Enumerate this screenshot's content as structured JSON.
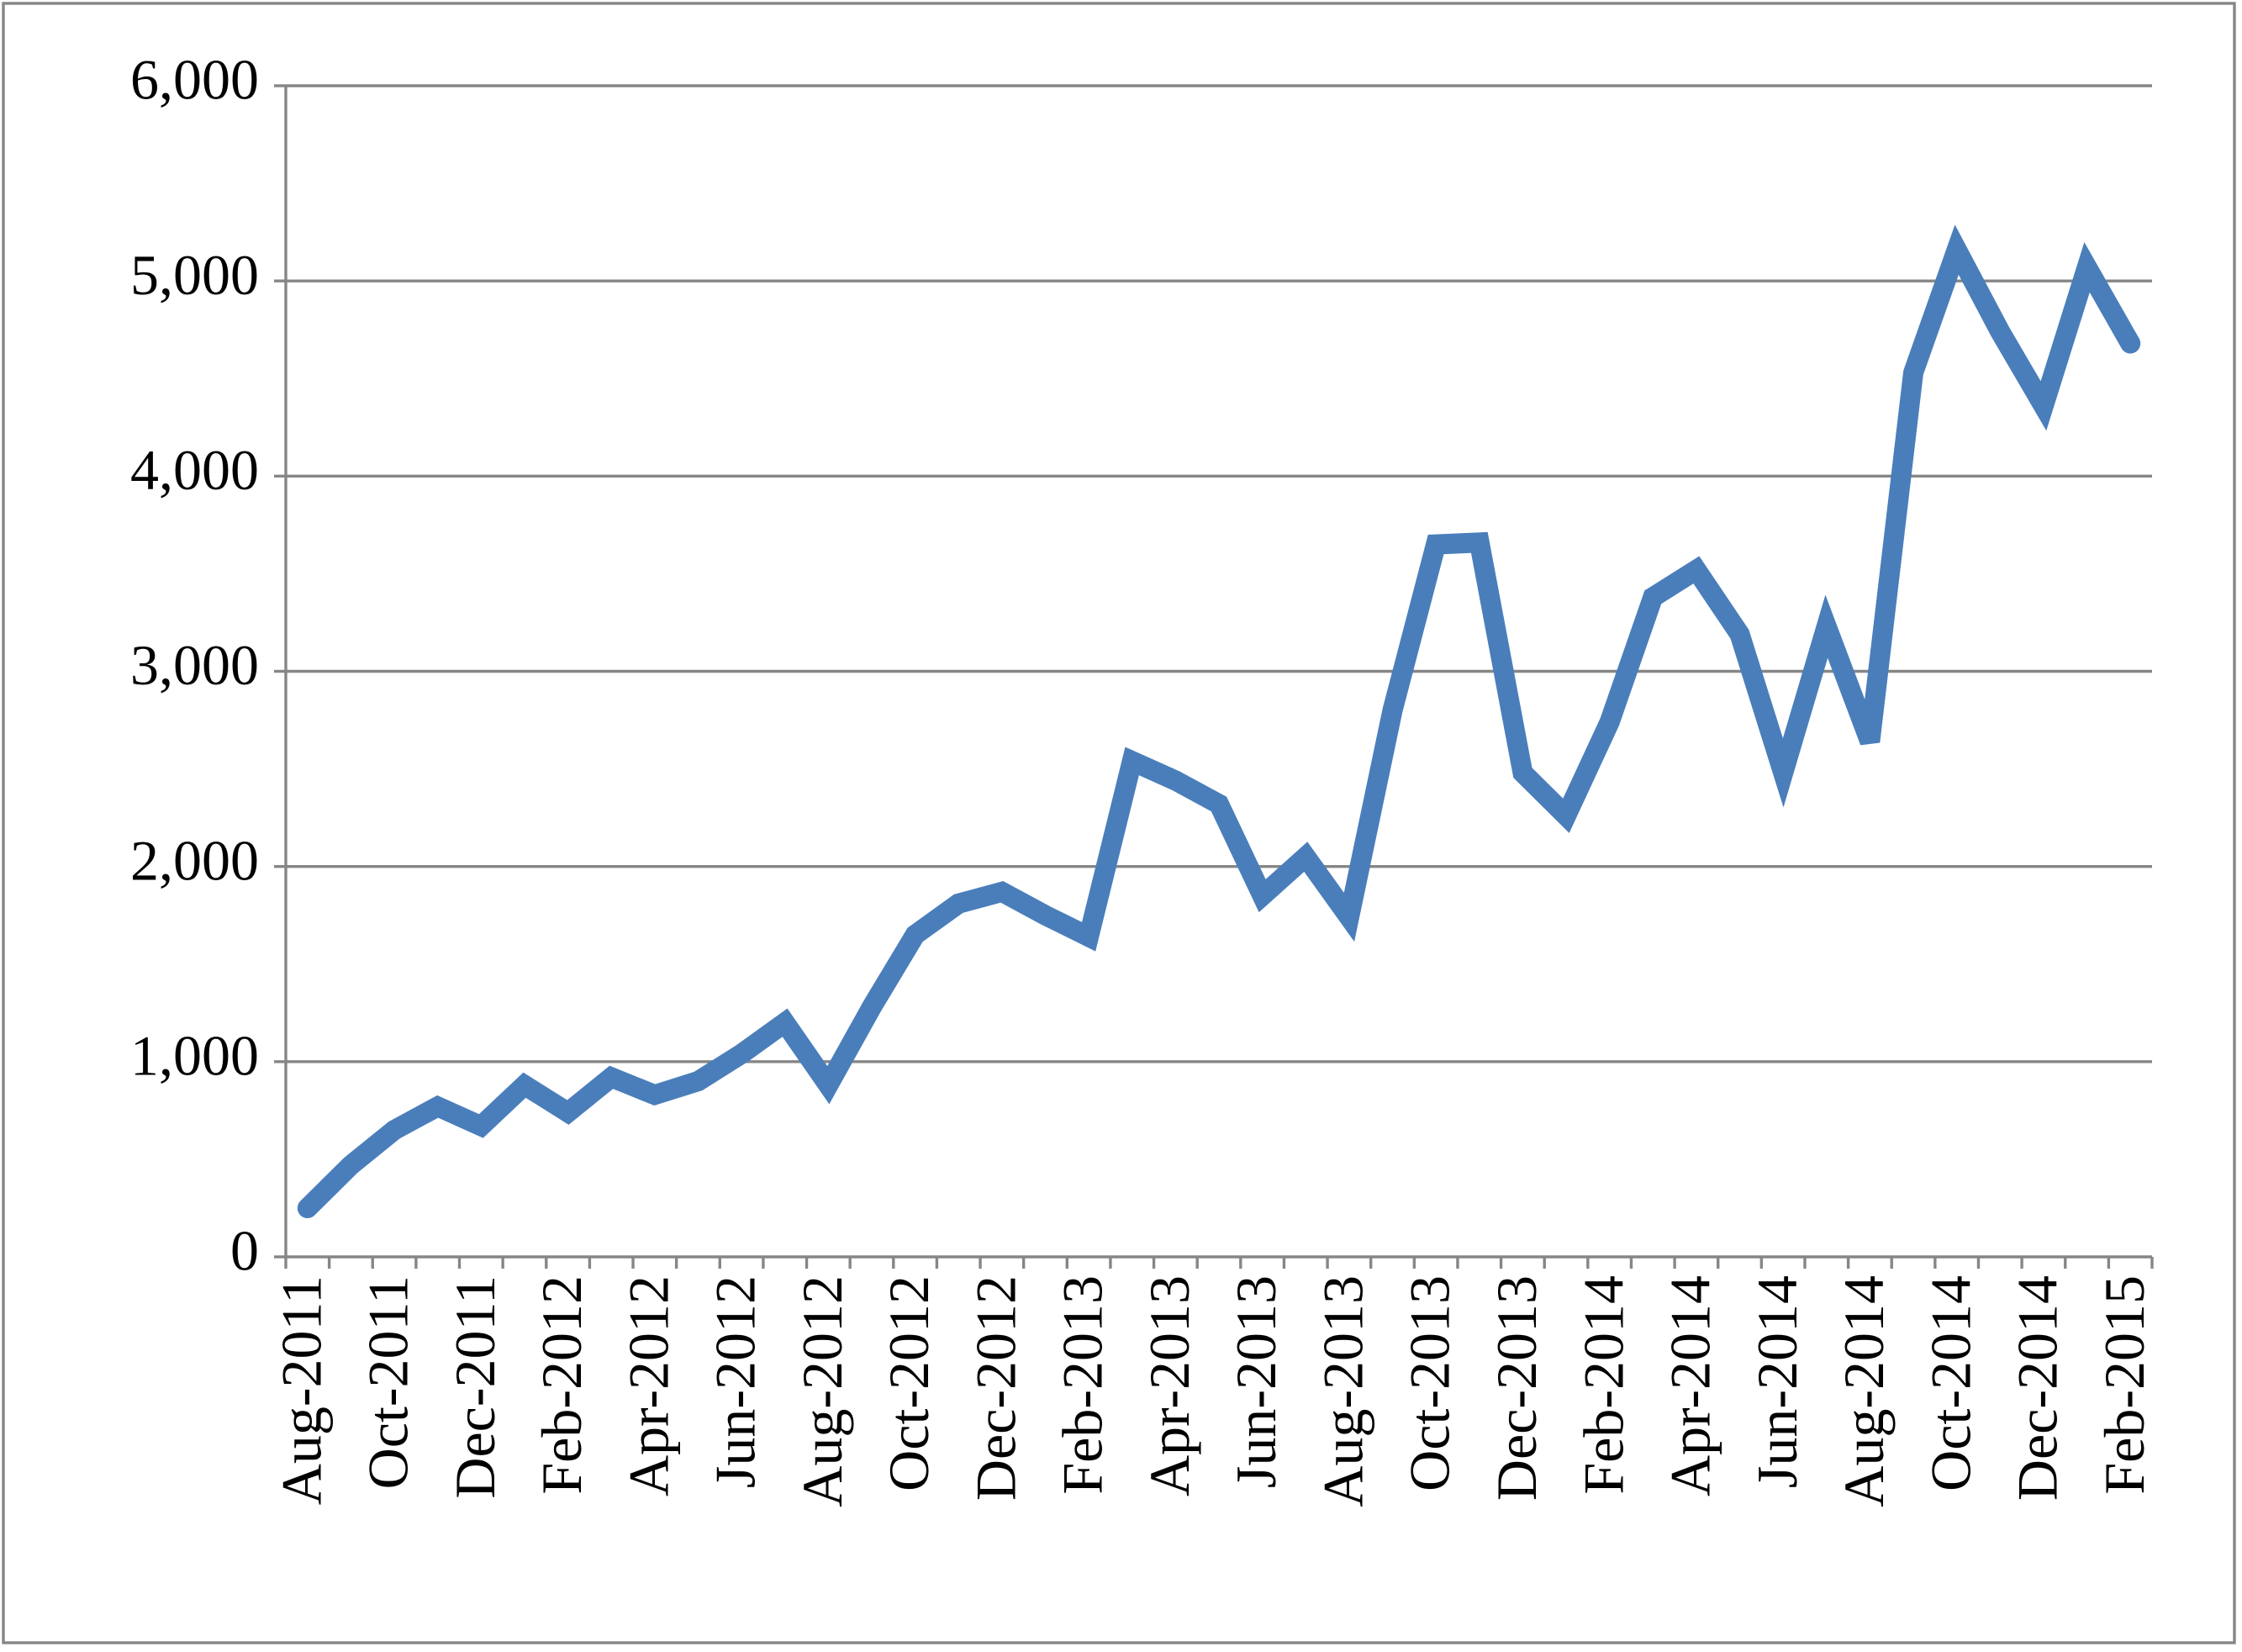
{
  "chart_data": {
    "type": "line",
    "categories": [
      "Aug-2011",
      null,
      "Oct-2011",
      null,
      "Dec-2011",
      null,
      "Feb-2012",
      null,
      "Apr-2012",
      null,
      "Jun-2012",
      null,
      "Aug-2012",
      null,
      "Oct-2012",
      null,
      "Dec-2012",
      null,
      "Feb-2013",
      null,
      "Apr-2013",
      null,
      "Jun-2013",
      null,
      "Aug-2013",
      null,
      "Oct-2013",
      null,
      "Dec-2013",
      null,
      "Feb-2014",
      null,
      "Apr-2014",
      null,
      "Jun-2014",
      null,
      "Aug-2014",
      null,
      "Oct-2014",
      null,
      "Dec-2014",
      null,
      "Feb-2015"
    ],
    "values": [
      250,
      470,
      650,
      770,
      670,
      880,
      740,
      920,
      830,
      900,
      1040,
      1200,
      880,
      1280,
      1650,
      1810,
      1870,
      1750,
      1640,
      2540,
      2440,
      2320,
      1850,
      2050,
      1740,
      2800,
      3650,
      3660,
      2480,
      2260,
      2740,
      3380,
      3520,
      3190,
      2480,
      3230,
      2640,
      4530,
      5160,
      4740,
      4360,
      5070,
      4680
    ],
    "color": "#4a7ebb",
    "ylim": [
      0,
      6000
    ],
    "yticks": [
      0,
      {
        "value": 1000,
        "label": "1,000"
      },
      {
        "value": 2000,
        "label": "2,000"
      },
      {
        "value": 3000,
        "label": "3,000"
      },
      {
        "value": 4000,
        "label": "4,000"
      },
      {
        "value": 5000,
        "label": "5,000"
      },
      {
        "value": 6000,
        "label": "6,000"
      }
    ],
    "grid": true
  }
}
